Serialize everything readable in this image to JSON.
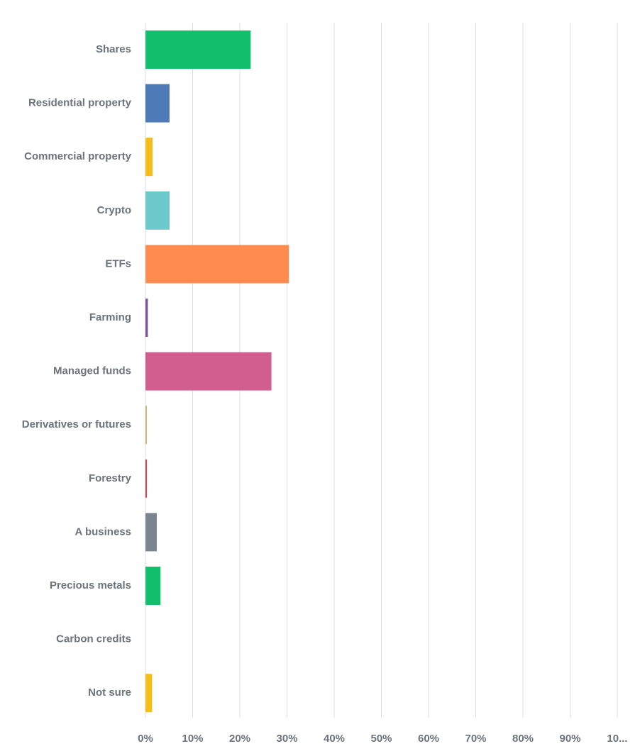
{
  "chart_data": {
    "type": "bar",
    "orientation": "horizontal",
    "categories": [
      "Shares",
      "Residential property",
      "Commercial property",
      "Crypto",
      "ETFs",
      "Farming",
      "Managed funds",
      "Derivatives or futures",
      "Forestry",
      "A business",
      "Precious metals",
      "Carbon credits",
      "Not sure"
    ],
    "values": [
      22.3,
      5.1,
      1.5,
      5.1,
      30.4,
      0.5,
      26.7,
      0.3,
      0.3,
      2.4,
      3.2,
      0,
      1.4
    ],
    "colors": [
      "#12bf6c",
      "#4f7ab8",
      "#f6bd17",
      "#6ccacd",
      "#ff8b4f",
      "#7c5295",
      "#d25e8e",
      "#d0b577",
      "#d43f4c",
      "#7b858f",
      "#12bf6c",
      "#4f7ab8",
      "#f6bd17"
    ],
    "xlim": [
      0,
      100
    ],
    "x_ticks": [
      "0%",
      "10%",
      "20%",
      "30%",
      "40%",
      "50%",
      "60%",
      "70%",
      "80%",
      "90%",
      "10..."
    ],
    "grid": true,
    "legend": "none",
    "title": "",
    "xlabel": "",
    "ylabel": ""
  }
}
